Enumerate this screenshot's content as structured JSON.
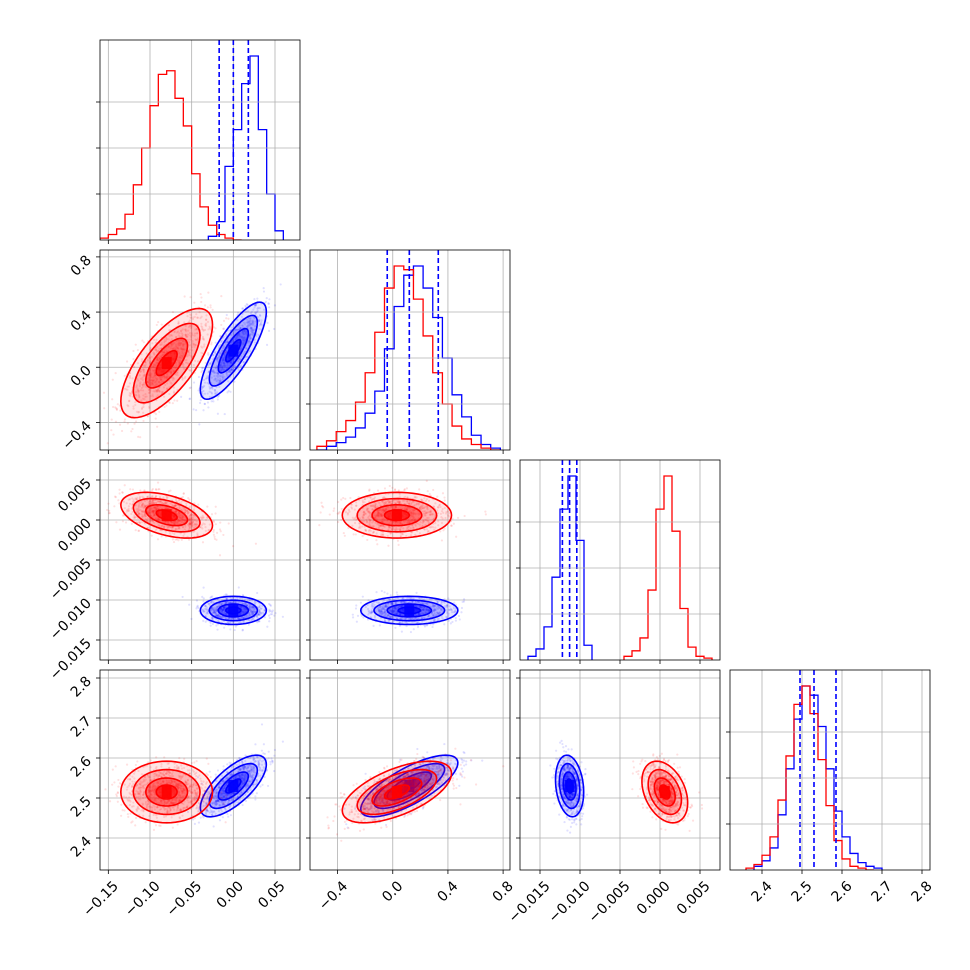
{
  "chart_data": {
    "type": "corner",
    "grid": true,
    "colors": {
      "blue": "#0000ff",
      "red": "#ff0000",
      "grid": "#b0b0b0"
    },
    "parameters": [
      {
        "range": [
          -0.16,
          0.08
        ],
        "ticks": [
          -0.15,
          -0.1,
          -0.05,
          0.0,
          0.05
        ],
        "tick_labels": [
          "−0.15",
          "−0.10",
          "−0.05",
          "0.00",
          "0.05"
        ]
      },
      {
        "range": [
          -0.6,
          0.85
        ],
        "ticks": [
          -0.4,
          0.0,
          0.4,
          0.8
        ],
        "tick_labels": [
          "−0.4",
          "0.0",
          "0.4",
          "0.8"
        ]
      },
      {
        "range": [
          -0.0175,
          0.0075
        ],
        "ticks": [
          -0.015,
          -0.01,
          -0.005,
          0.0,
          0.005
        ],
        "tick_labels": [
          "−0.015",
          "−0.010",
          "−0.005",
          "0.000",
          "0.005"
        ]
      },
      {
        "range": [
          2.32,
          2.82
        ],
        "ticks": [
          2.4,
          2.5,
          2.6,
          2.7,
          2.8
        ],
        "tick_labels": [
          "2.4",
          "2.5",
          "2.6",
          "2.7",
          "2.8"
        ]
      }
    ],
    "series": [
      {
        "color": "#0000ff",
        "means": [
          0.0,
          0.12,
          -0.0113,
          2.53
        ],
        "sds": [
          0.018,
          0.16,
          0.0008,
          0.035
        ],
        "correlations": {
          "0-1": 0.8,
          "0-2": 0.0,
          "1-2": 0.0,
          "0-3": 0.7,
          "1-3": 0.75,
          "2-3": -0.2
        },
        "quantiles_16_50_84": [
          [
            -0.017,
            0.0,
            0.018
          ],
          [
            -0.04,
            0.12,
            0.33
          ],
          [
            -0.0122,
            -0.0113,
            -0.0104
          ],
          [
            2.495,
            2.53,
            2.585
          ]
        ],
        "histograms": [
          {
            "edges": [
              -0.03,
              -0.02,
              -0.01,
              0.0,
              0.01,
              0.02,
              0.03,
              0.04,
              0.05,
              0.06
            ],
            "counts": [
              0.02,
              0.1,
              0.4,
              0.6,
              0.85,
              1.0,
              0.6,
              0.25,
              0.05
            ]
          },
          {
            "edges": [
              -0.55,
              -0.48,
              -0.41,
              -0.34,
              -0.27,
              -0.2,
              -0.13,
              -0.06,
              0.01,
              0.08,
              0.15,
              0.22,
              0.29,
              0.36,
              0.43,
              0.5,
              0.57,
              0.64,
              0.71,
              0.78
            ],
            "counts": [
              0.0,
              0.02,
              0.04,
              0.07,
              0.12,
              0.2,
              0.32,
              0.55,
              0.78,
              0.95,
              1.0,
              0.88,
              0.72,
              0.5,
              0.3,
              0.18,
              0.08,
              0.03,
              0.01
            ]
          },
          {
            "edges": [
              -0.0165,
              -0.0155,
              -0.0145,
              -0.0135,
              -0.0125,
              -0.0115,
              -0.0105,
              -0.0095,
              -0.0085
            ],
            "counts": [
              0.02,
              0.06,
              0.18,
              0.45,
              0.82,
              1.0,
              0.65,
              0.08
            ]
          },
          {
            "edges": [
              2.38,
              2.4,
              2.42,
              2.44,
              2.46,
              2.48,
              2.5,
              2.52,
              2.54,
              2.56,
              2.58,
              2.6,
              2.62,
              2.64,
              2.66,
              2.68,
              2.7
            ],
            "counts": [
              0.02,
              0.05,
              0.12,
              0.3,
              0.55,
              0.82,
              1.0,
              0.95,
              0.78,
              0.55,
              0.32,
              0.18,
              0.09,
              0.04,
              0.02,
              0.01
            ]
          }
        ]
      },
      {
        "color": "#ff0000",
        "means": [
          -0.08,
          0.03,
          0.0006,
          2.515
        ],
        "sds": [
          0.025,
          0.18,
          0.0013,
          0.035
        ],
        "correlations": {
          "0-1": 0.7,
          "0-2": -0.45,
          "1-2": 0.0,
          "0-3": 0.0,
          "1-3": 0.6,
          "2-3": -0.35
        },
        "quantiles_16_50_84": [
          [
            -0.105,
            -0.08,
            -0.055
          ],
          [
            -0.15,
            0.03,
            0.21
          ],
          [
            -0.0007,
            0.0006,
            0.0019
          ],
          [
            2.48,
            2.515,
            2.55
          ]
        ],
        "histograms": [
          {
            "edges": [
              -0.16,
              -0.15,
              -0.14,
              -0.13,
              -0.12,
              -0.11,
              -0.1,
              -0.09,
              -0.08,
              -0.07,
              -0.06,
              -0.05,
              -0.04,
              -0.03,
              -0.02,
              -0.01,
              0.0,
              0.01
            ],
            "counts": [
              0.01,
              0.03,
              0.06,
              0.14,
              0.3,
              0.5,
              0.73,
              0.9,
              0.92,
              0.77,
              0.62,
              0.36,
              0.18,
              0.08,
              0.03,
              0.01,
              0.0
            ]
          },
          {
            "edges": [
              -0.55,
              -0.48,
              -0.41,
              -0.34,
              -0.27,
              -0.2,
              -0.13,
              -0.06,
              0.01,
              0.08,
              0.15,
              0.22,
              0.29,
              0.36,
              0.43,
              0.5,
              0.57,
              0.64,
              0.71,
              0.78
            ],
            "counts": [
              0.02,
              0.05,
              0.1,
              0.16,
              0.26,
              0.42,
              0.64,
              0.88,
              1.0,
              0.98,
              0.82,
              0.62,
              0.42,
              0.25,
              0.13,
              0.06,
              0.03,
              0.01,
              0.0
            ]
          },
          {
            "edges": [
              -0.0045,
              -0.0035,
              -0.0025,
              -0.0015,
              -0.0005,
              0.0005,
              0.0015,
              0.0025,
              0.0035,
              0.0045,
              0.0055,
              0.0065
            ],
            "counts": [
              0.02,
              0.05,
              0.12,
              0.38,
              0.82,
              1.0,
              0.7,
              0.28,
              0.07,
              0.02,
              0.01
            ]
          },
          {
            "edges": [
              2.36,
              2.38,
              2.4,
              2.42,
              2.44,
              2.46,
              2.48,
              2.5,
              2.52,
              2.54,
              2.56,
              2.58,
              2.6,
              2.62,
              2.64,
              2.66,
              2.68
            ],
            "counts": [
              0.01,
              0.03,
              0.08,
              0.18,
              0.38,
              0.62,
              0.9,
              1.0,
              0.85,
              0.6,
              0.35,
              0.16,
              0.06,
              0.02,
              0.01,
              0.0
            ]
          }
        ]
      }
    ]
  }
}
